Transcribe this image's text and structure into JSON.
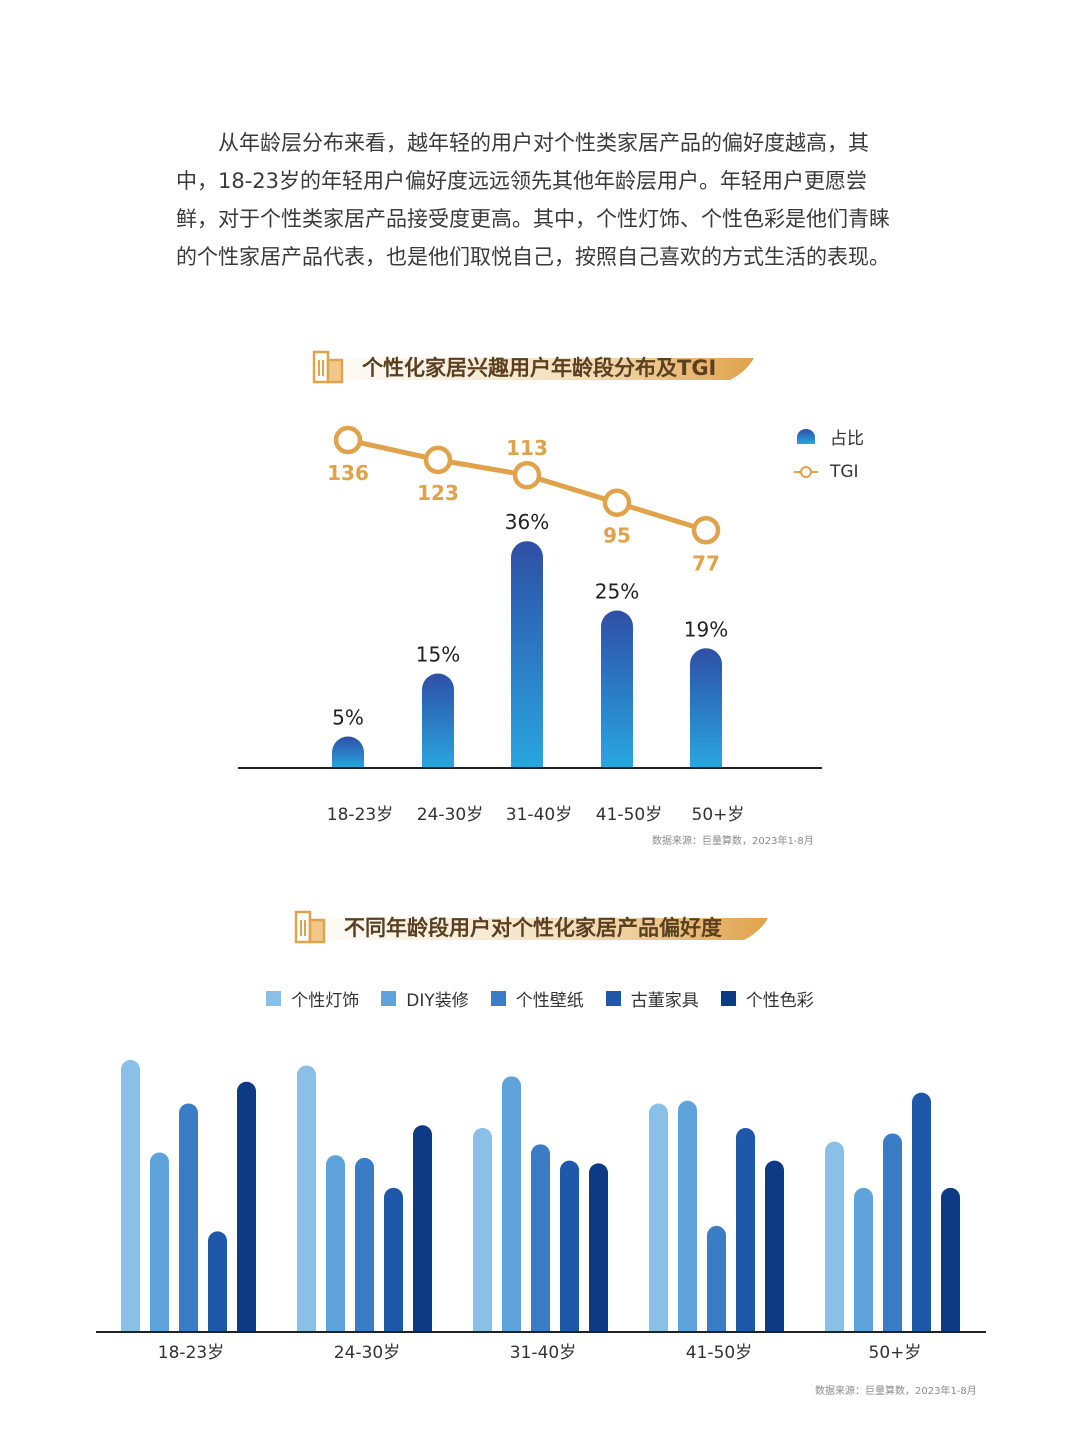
{
  "intro": {
    "lines": [
      "从年龄层分布来看，越年轻的用户对个性类家居产品的偏好度越高，",
      "其中，18-23岁的年轻用户偏好度远远领先其他年龄层用户。年轻用户更愿",
      "尝鲜，对于个性类家居产品接受度更高。其中，个性灯饰、个性色彩是他",
      "们青睐的个性家居产品代表，也是他们取悦自己，按照自己喜欢的方式生",
      "活的表现。"
    ]
  },
  "colors": {
    "accent_gold": "#e0a24a",
    "bar_top": "#2e4fa6",
    "bar_bottom": "#29a6e0",
    "series": [
      "#8ac0e8",
      "#5fa3dc",
      "#3a7cc6",
      "#1f58a8",
      "#0c3a84"
    ]
  },
  "chart_data": [
    {
      "type": "bar",
      "title": "个性化家居兴趣用户年龄段分布及TGI",
      "categories": [
        "18-23岁",
        "24-30岁",
        "31-40岁",
        "41-50岁",
        "50+岁"
      ],
      "series": [
        {
          "name": "占比",
          "values": [
            5,
            15,
            36,
            25,
            19
          ],
          "labels": [
            "5%",
            "15%",
            "36%",
            "25%",
            "19%"
          ]
        },
        {
          "name": "TGI",
          "type": "line",
          "values": [
            136,
            123,
            113,
            95,
            77
          ],
          "labels": [
            "136",
            "123",
            "113",
            "95",
            "77"
          ]
        }
      ],
      "legend": "top-right",
      "source": "数据来源：巨量算数，2023年1-8月"
    },
    {
      "type": "bar",
      "title": "不同年龄段用户对个性化家居产品偏好度",
      "categories": [
        "18-23岁",
        "24-30岁",
        "31-40岁",
        "41-50岁",
        "50+岁"
      ],
      "series": [
        {
          "name": "个性灯饰",
          "values": [
            100,
            98,
            75,
            84,
            70
          ]
        },
        {
          "name": "DIY装修",
          "values": [
            66,
            65,
            94,
            85,
            53
          ]
        },
        {
          "name": "个性壁纸",
          "values": [
            84,
            64,
            69,
            39,
            73
          ]
        },
        {
          "name": "古董家具",
          "values": [
            37,
            53,
            63,
            75,
            88
          ]
        },
        {
          "name": "个性色彩",
          "values": [
            92,
            76,
            62,
            63,
            53
          ]
        }
      ],
      "legend": "top",
      "source": "数据来源：巨量算数，2023年1-8月"
    }
  ]
}
